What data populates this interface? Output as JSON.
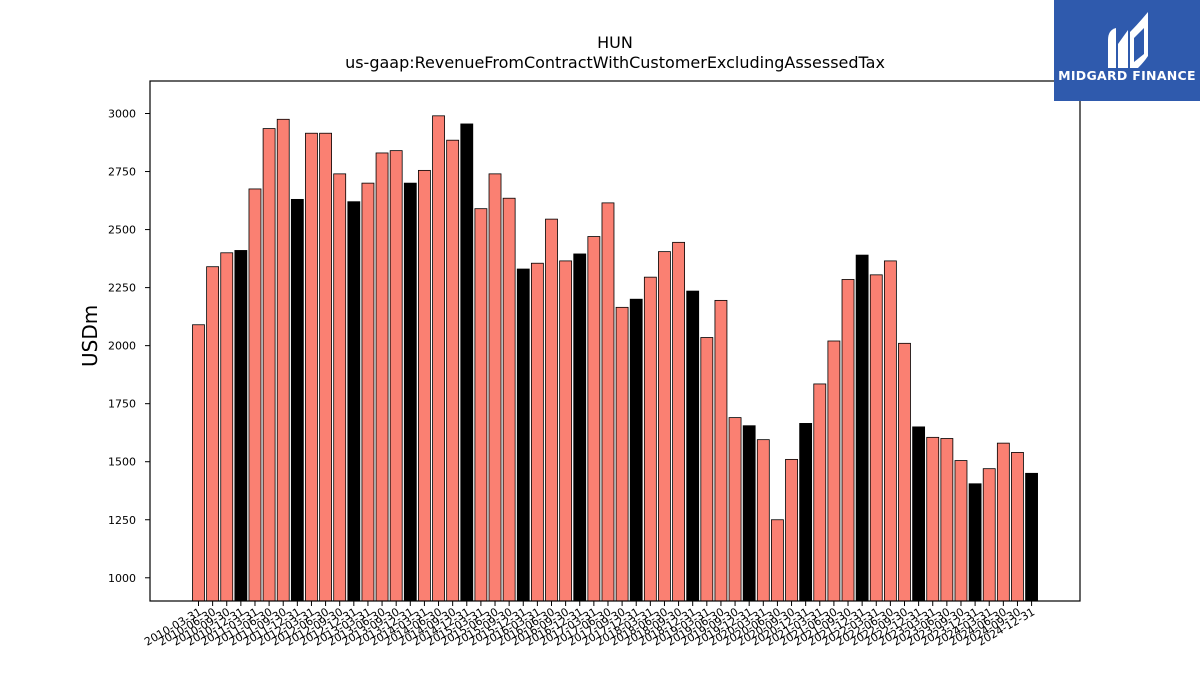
{
  "chart_data": {
    "type": "bar",
    "title": "HUN",
    "subtitle": "us-gaap:RevenueFromContractWithCustomerExcludingAssessedTax",
    "xlabel": "",
    "ylabel": "USDm",
    "ylim": [
      900,
      3140
    ],
    "yticks": [
      1000,
      1250,
      1500,
      1750,
      2000,
      2250,
      2500,
      2750,
      3000
    ],
    "grid": false,
    "colors": {
      "quarter": "#fa8072",
      "year_end": "#000000",
      "edge": "#000000"
    },
    "categories": [
      "2010-03-31",
      "2010-06-30",
      "2010-09-30",
      "2010-12-31",
      "2011-03-31",
      "2011-06-30",
      "2011-09-30",
      "2011-12-31",
      "2012-03-31",
      "2012-06-30",
      "2012-09-30",
      "2012-12-31",
      "2013-03-31",
      "2013-06-30",
      "2013-09-30",
      "2013-12-31",
      "2014-03-31",
      "2014-06-30",
      "2014-09-30",
      "2014-12-31",
      "2015-03-31",
      "2015-06-30",
      "2015-09-30",
      "2015-12-31",
      "2016-03-31",
      "2016-06-30",
      "2016-09-30",
      "2016-12-31",
      "2017-03-31",
      "2017-06-30",
      "2017-09-30",
      "2017-12-31",
      "2018-03-31",
      "2018-06-30",
      "2018-09-30",
      "2018-12-31",
      "2019-03-31",
      "2019-06-30",
      "2019-09-30",
      "2019-12-31",
      "2020-03-31",
      "2020-06-30",
      "2020-09-30",
      "2020-12-31",
      "2021-03-31",
      "2021-06-30",
      "2021-09-30",
      "2021-12-31",
      "2022-03-31",
      "2022-06-30",
      "2022-09-30",
      "2022-12-31",
      "2023-03-31",
      "2023-06-30",
      "2023-09-30",
      "2023-12-31",
      "2024-03-31",
      "2024-06-30",
      "2024-09-30",
      "2024-12-31"
    ],
    "values": [
      2090,
      2340,
      2400,
      2410,
      2675,
      2935,
      2975,
      2630,
      2915,
      2915,
      2740,
      2620,
      2700,
      2830,
      2840,
      2700,
      2755,
      2990,
      2885,
      2955,
      2590,
      2740,
      2635,
      2330,
      2355,
      2545,
      2365,
      2395,
      2470,
      2615,
      2165,
      2200,
      2295,
      2405,
      2445,
      2235,
      2035,
      2195,
      1690,
      1655,
      1595,
      1250,
      1510,
      1665,
      1835,
      2020,
      2285,
      2390,
      2305,
      2365,
      2010,
      1650,
      1605,
      1600,
      1505,
      1405,
      1470,
      1580,
      1540,
      1450
    ]
  },
  "logo": {
    "text": "MIDGARD FINANCE",
    "icon": "midgard-logo-mark"
  }
}
